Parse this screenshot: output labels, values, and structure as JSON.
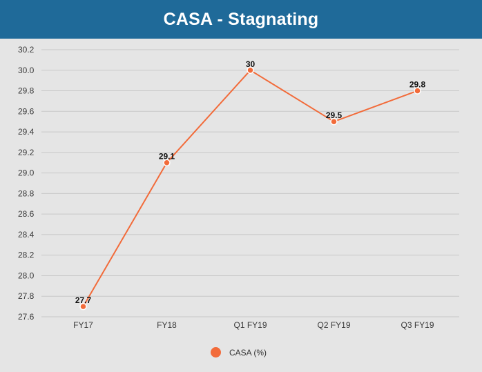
{
  "header": {
    "title": "CASA - Stagnating"
  },
  "colors": {
    "header_bg": "#1f6a99",
    "series": "#f26b3a",
    "grid": "#c8c8c8"
  },
  "chart_data": {
    "type": "line",
    "title": "CASA - Stagnating",
    "categories": [
      "FY17",
      "FY18",
      "Q1 FY19",
      "Q2 FY19",
      "Q3 FY19"
    ],
    "series": [
      {
        "name": "CASA (%)",
        "values": [
          27.7,
          29.1,
          30,
          29.5,
          29.8
        ],
        "labels": [
          "27.7",
          "29.1",
          "30",
          "29.5",
          "29.8"
        ]
      }
    ],
    "yticks": [
      "27.6",
      "27.8",
      "28.0",
      "28.2",
      "28.4",
      "28.6",
      "28.8",
      "29.0",
      "29.2",
      "29.4",
      "29.6",
      "29.8",
      "30.0",
      "30.2"
    ],
    "ylim": [
      27.6,
      30.2
    ],
    "xlabel": "",
    "ylabel": "",
    "legend_position": "bottom"
  }
}
